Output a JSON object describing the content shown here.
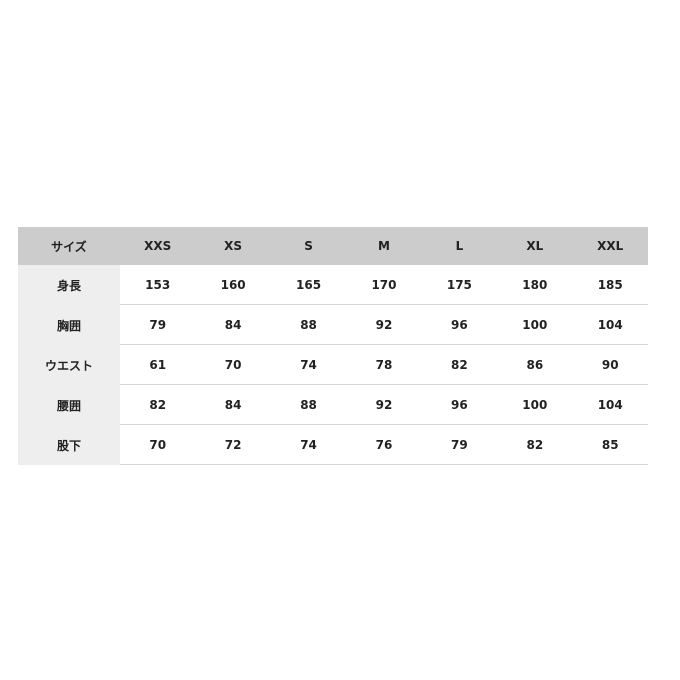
{
  "table": {
    "corner_label": "サイズ",
    "sizes": [
      "XXS",
      "XS",
      "S",
      "M",
      "L",
      "XL",
      "XXL"
    ],
    "rows": [
      {
        "label": "身長",
        "values": [
          "153",
          "160",
          "165",
          "170",
          "175",
          "180",
          "185"
        ]
      },
      {
        "label": "胸囲",
        "values": [
          "79",
          "84",
          "88",
          "92",
          "96",
          "100",
          "104"
        ]
      },
      {
        "label": "ウエスト",
        "values": [
          "61",
          "70",
          "74",
          "78",
          "82",
          "86",
          "90"
        ]
      },
      {
        "label": "腰囲",
        "values": [
          "82",
          "84",
          "88",
          "92",
          "96",
          "100",
          "104"
        ]
      },
      {
        "label": "股下",
        "values": [
          "70",
          "72",
          "74",
          "76",
          "79",
          "82",
          "85"
        ]
      }
    ]
  },
  "colors": {
    "header_bg": "#cccccc",
    "label_bg": "#eeeeee",
    "divider": "#d6d6d6"
  }
}
